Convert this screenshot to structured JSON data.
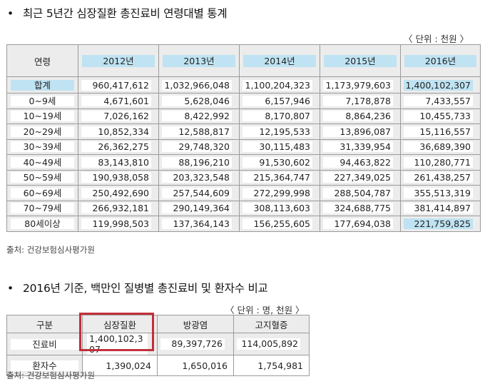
{
  "section1": {
    "title": "최근 5년간 심장질환 총진료비 연령대별 통계",
    "bullet": "•",
    "unit": "〈 단위 : 천원 〉",
    "source": "출처: 건강보험심사평가원",
    "header": [
      "연령",
      "2012년",
      "2013년",
      "2014년",
      "2015년",
      "2016년"
    ],
    "rows": [
      {
        "label": "합계",
        "values": [
          "960,417,612",
          "1,032,966,048",
          "1,100,204,323",
          "1,173,979,603",
          "1,400,102,307"
        ]
      },
      {
        "label": "0~9세",
        "values": [
          "4,671,601",
          "5,628,046",
          "6,157,946",
          "7,178,878",
          "7,433,557"
        ]
      },
      {
        "label": "10~19세",
        "values": [
          "7,026,162",
          "8,422,992",
          "8,170,807",
          "8,864,236",
          "10,455,733"
        ]
      },
      {
        "label": "20~29세",
        "values": [
          "10,852,334",
          "12,588,817",
          "12,195,533",
          "13,896,087",
          "15,116,557"
        ]
      },
      {
        "label": "30~39세",
        "values": [
          "26,362,275",
          "29,748,320",
          "30,115,483",
          "31,339,954",
          "36,689,390"
        ]
      },
      {
        "label": "40~49세",
        "values": [
          "83,143,810",
          "88,196,210",
          "91,530,602",
          "94,463,822",
          "110,280,771"
        ]
      },
      {
        "label": "50~59세",
        "values": [
          "190,938,058",
          "203,323,548",
          "215,364,747",
          "227,349,025",
          "261,438,257"
        ]
      },
      {
        "label": "60~69세",
        "values": [
          "250,492,690",
          "257,544,609",
          "272,299,998",
          "288,504,787",
          "355,513,319"
        ]
      },
      {
        "label": "70~79세",
        "values": [
          "266,932,181",
          "290,149,364",
          "308,113,603",
          "324,688,775",
          "381,414,897"
        ]
      },
      {
        "label": "80세이상",
        "values": [
          "119,998,503",
          "137,364,143",
          "156,255,605",
          "177,694,038",
          "221,759,825"
        ]
      }
    ]
  },
  "section2": {
    "title": "2016년 기준, 백만인 질병별 총진료비 및 환자수 비교",
    "bullet": "•",
    "unit": "〈 단위 : 명, 천원 〉",
    "source": "출처: 건강보험심사평가원",
    "header": [
      "구분",
      "심장질환",
      "방광염",
      "고지혈증"
    ],
    "rows": [
      {
        "label": "진료비",
        "values": [
          "1,400,102,307",
          "89,397,726",
          "114,005,892"
        ]
      },
      {
        "label": "환자수",
        "values": [
          "1,390,024",
          "1,650,016",
          "1,754,981"
        ]
      }
    ]
  },
  "colors": {
    "highlight": "#bfe3f2",
    "header_bg": "#ececec",
    "annotation_box": "#c0303a"
  }
}
